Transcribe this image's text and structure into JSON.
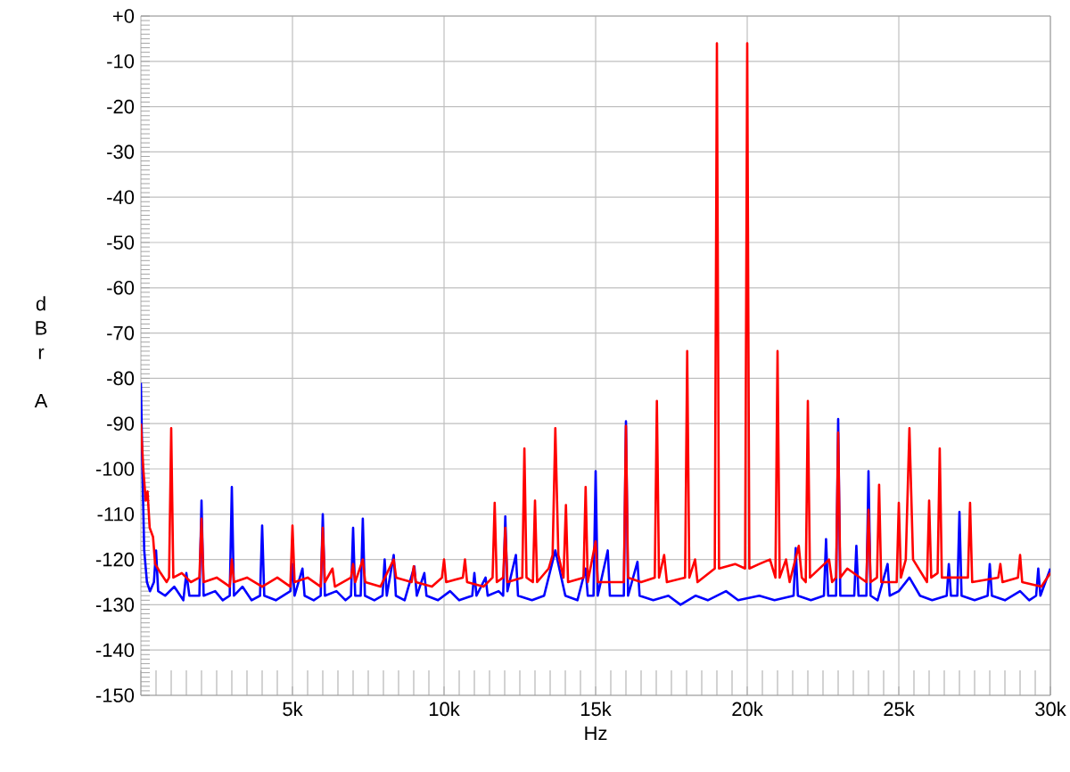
{
  "chart_data": {
    "type": "line",
    "xlabel": "Hz",
    "ylabel": "dBr A",
    "xlim": [
      0,
      30000
    ],
    "ylim": [
      -150,
      0
    ],
    "xticks": [
      {
        "value": 5000,
        "label": "5k"
      },
      {
        "value": 10000,
        "label": "10k"
      },
      {
        "value": 15000,
        "label": "15k"
      },
      {
        "value": 20000,
        "label": "20k"
      },
      {
        "value": 25000,
        "label": "25k"
      },
      {
        "value": 30000,
        "label": "30k"
      }
    ],
    "yticks": [
      {
        "value": 0,
        "label": "+0"
      },
      -10,
      -20,
      -30,
      -40,
      -50,
      -60,
      -70,
      -80,
      -90,
      -100,
      -110,
      -120,
      -130,
      -140,
      -150
    ],
    "grid": true,
    "line_style": "solid",
    "series": [
      {
        "color": "#0000ff",
        "x": [
          0,
          50,
          110,
          200,
          300,
          430,
          500,
          570,
          800,
          1100,
          1400,
          1500,
          1600,
          1930,
          2000,
          2070,
          2450,
          2700,
          2930,
          3000,
          3070,
          3350,
          3650,
          3930,
          4000,
          4070,
          4450,
          4930,
          5000,
          5070,
          5330,
          5400,
          5700,
          5930,
          6000,
          6070,
          6450,
          6750,
          6930,
          7000,
          7070,
          7250,
          7320,
          7390,
          7700,
          7970,
          8040,
          8110,
          8340,
          8410,
          8700,
          9020,
          9100,
          9350,
          9420,
          9800,
          10200,
          10500,
          10930,
          11000,
          11070,
          11370,
          11440,
          11800,
          11950,
          12020,
          12090,
          12370,
          12440,
          12900,
          13300,
          13670,
          14000,
          14400,
          14670,
          14740,
          14930,
          15000,
          15070,
          15400,
          15470,
          15930,
          16000,
          16070,
          16380,
          16450,
          16900,
          17400,
          17800,
          18300,
          18700,
          19300,
          19700,
          20400,
          20900,
          21530,
          21600,
          21670,
          22100,
          22530,
          22600,
          22670,
          22930,
          23000,
          23070,
          23530,
          23600,
          23670,
          23930,
          24000,
          24070,
          24300,
          24630,
          24700,
          25000,
          25350,
          25700,
          26100,
          26580,
          26650,
          26720,
          26930,
          27000,
          27070,
          27500,
          27930,
          28000,
          28070,
          28500,
          29000,
          29300,
          29530,
          29600,
          29670,
          30000
        ],
        "values": [
          -81,
          -100,
          -118,
          -125,
          -127,
          -125,
          -118,
          -127,
          -128,
          -126,
          -129,
          -123,
          -128,
          -128,
          -107,
          -128,
          -127,
          -129,
          -128,
          -104,
          -128,
          -126,
          -129,
          -128,
          -112.5,
          -128,
          -129,
          -127,
          -121,
          -128,
          -122,
          -128,
          -129,
          -128,
          -110,
          -128,
          -127,
          -129,
          -128,
          -113,
          -128,
          -128,
          -111,
          -128,
          -129,
          -128,
          -120,
          -128,
          -119,
          -128,
          -129,
          -121.5,
          -128,
          -123,
          -128,
          -129,
          -127,
          -129,
          -128,
          -123,
          -128,
          -124,
          -128,
          -127,
          -128,
          -110.5,
          -127,
          -119,
          -128,
          -129,
          -128,
          -118,
          -128,
          -129,
          -122,
          -128,
          -128,
          -100.5,
          -128,
          -118,
          -128,
          -128,
          -89.5,
          -128,
          -120.5,
          -128,
          -129,
          -128,
          -130,
          -128,
          -129,
          -127,
          -129,
          -128,
          -129,
          -128,
          -117.5,
          -128,
          -129,
          -128,
          -115.5,
          -128,
          -128,
          -89,
          -128,
          -128,
          -117,
          -128,
          -128,
          -100.5,
          -128,
          -129,
          -121,
          -128,
          -127,
          -124,
          -128,
          -129,
          -128,
          -121,
          -128,
          -128,
          -109.5,
          -128,
          -129,
          -128,
          -121,
          -128,
          -129,
          -127,
          -129,
          -128,
          -122,
          -128,
          -122
        ]
      },
      {
        "color": "#ff0000",
        "x": [
          0,
          80,
          160,
          220,
          290,
          400,
          470,
          650,
          850,
          930,
          1000,
          1070,
          1350,
          1650,
          1930,
          2000,
          2070,
          2500,
          2930,
          3000,
          3070,
          3500,
          4000,
          4500,
          4930,
          5000,
          5070,
          5500,
          5930,
          6000,
          6070,
          6320,
          6400,
          6930,
          7000,
          7070,
          7320,
          7400,
          7900,
          8340,
          8420,
          8930,
          9000,
          9070,
          9600,
          9930,
          10000,
          10070,
          10620,
          10690,
          10760,
          11300,
          11600,
          11670,
          11740,
          11950,
          12020,
          12090,
          12580,
          12650,
          12720,
          12930,
          13000,
          13070,
          13450,
          13580,
          13670,
          13770,
          13940,
          14020,
          14090,
          14600,
          14670,
          14740,
          15000,
          15070,
          15930,
          16000,
          16070,
          16500,
          16950,
          17020,
          17090,
          17260,
          17350,
          17950,
          18020,
          18090,
          18280,
          18360,
          18930,
          19000,
          19070,
          19600,
          19930,
          20000,
          20070,
          20400,
          20750,
          20930,
          21000,
          21070,
          21280,
          21400,
          21700,
          21800,
          21930,
          22000,
          22070,
          22700,
          22800,
          22930,
          23000,
          23070,
          23300,
          23930,
          24000,
          24070,
          24280,
          24350,
          24420,
          24930,
          25000,
          25070,
          25230,
          25350,
          25470,
          25930,
          26000,
          26070,
          26280,
          26350,
          26420,
          27280,
          27350,
          27420,
          28280,
          28350,
          28420,
          28930,
          29000,
          29070,
          29700,
          30000
        ],
        "values": [
          -90,
          -100,
          -107,
          -105,
          -113,
          -115,
          -121,
          -123,
          -125,
          -124,
          -91,
          -124,
          -123,
          -125,
          -124,
          -111,
          -125,
          -124,
          -126,
          -120,
          -125,
          -124,
          -126,
          -124,
          -126,
          -112.5,
          -125,
          -124,
          -126,
          -113,
          -125,
          -122,
          -126,
          -124,
          -121,
          -125,
          -120,
          -125,
          -126,
          -120,
          -124,
          -125,
          -121.5,
          -125,
          -126,
          -124,
          -120,
          -125,
          -124,
          -120,
          -125,
          -126,
          -124,
          -107.5,
          -125,
          -124,
          -113,
          -125,
          -124,
          -95.5,
          -124,
          -125,
          -107,
          -125,
          -122,
          -119,
          -91,
          -119,
          -124,
          -108,
          -125,
          -124,
          -104,
          -125,
          -116,
          -125,
          -125,
          -90.5,
          -124,
          -125,
          -124,
          -85,
          -124,
          -119,
          -125,
          -124,
          -74,
          -124,
          -120,
          -125,
          -122,
          -6,
          -122,
          -121,
          -122,
          -6,
          -122,
          -121,
          -120,
          -124,
          -74,
          -124,
          -120,
          -125,
          -117,
          -124,
          -125,
          -85,
          -124,
          -120,
          -125,
          -124,
          -92,
          -124,
          -122,
          -125,
          -109,
          -125,
          -124,
          -103.5,
          -125,
          -125,
          -107.5,
          -124,
          -120,
          -91,
          -120,
          -125,
          -107,
          -124,
          -123,
          -95.5,
          -124,
          -124,
          -107.5,
          -125,
          -124,
          -121,
          -125,
          -124,
          -119,
          -125,
          -126,
          -123
        ]
      }
    ]
  }
}
